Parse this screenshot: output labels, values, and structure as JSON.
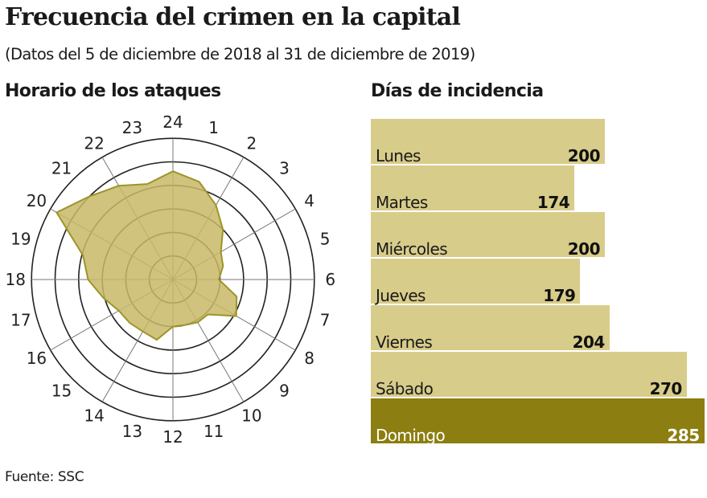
{
  "title": "Frecuencia del crimen en la capital",
  "subtitle": "(Datos del 5 de diciembre de 2018 al 31 de diciembre de 2019)",
  "source": "Fuente: SSC",
  "colors": {
    "bar": "#d8cc8a",
    "highlight": "#8c7e10",
    "radar_fill": "#c8b866",
    "radar_stroke": "#9e9428"
  },
  "chart_data": [
    {
      "type": "radar",
      "title": "Horario de los ataques",
      "categories": [
        "24",
        "1",
        "2",
        "3",
        "4",
        "5",
        "6",
        "7",
        "8",
        "9",
        "10",
        "11",
        "12",
        "13",
        "14",
        "15",
        "16",
        "17",
        "18",
        "19",
        "20",
        "21",
        "22",
        "23"
      ],
      "values": [
        4.6,
        4.3,
        3.65,
        3.0,
        2.35,
        2.2,
        1.95,
        2.8,
        3.1,
        2.1,
        2.1,
        2.0,
        2.0,
        2.65,
        2.55,
        2.6,
        2.65,
        3.05,
        3.6,
        3.95,
        5.7,
        5.0,
        4.6,
        4.2
      ],
      "rings": 6
    },
    {
      "type": "bar",
      "orientation": "horizontal",
      "title": "Días de incidencia",
      "categories": [
        "Lunes",
        "Martes",
        "Miércoles",
        "Jueves",
        "Viernes",
        "Sábado",
        "Domingo"
      ],
      "values": [
        200,
        174,
        200,
        179,
        204,
        270,
        285
      ],
      "highlight": "Domingo"
    }
  ]
}
